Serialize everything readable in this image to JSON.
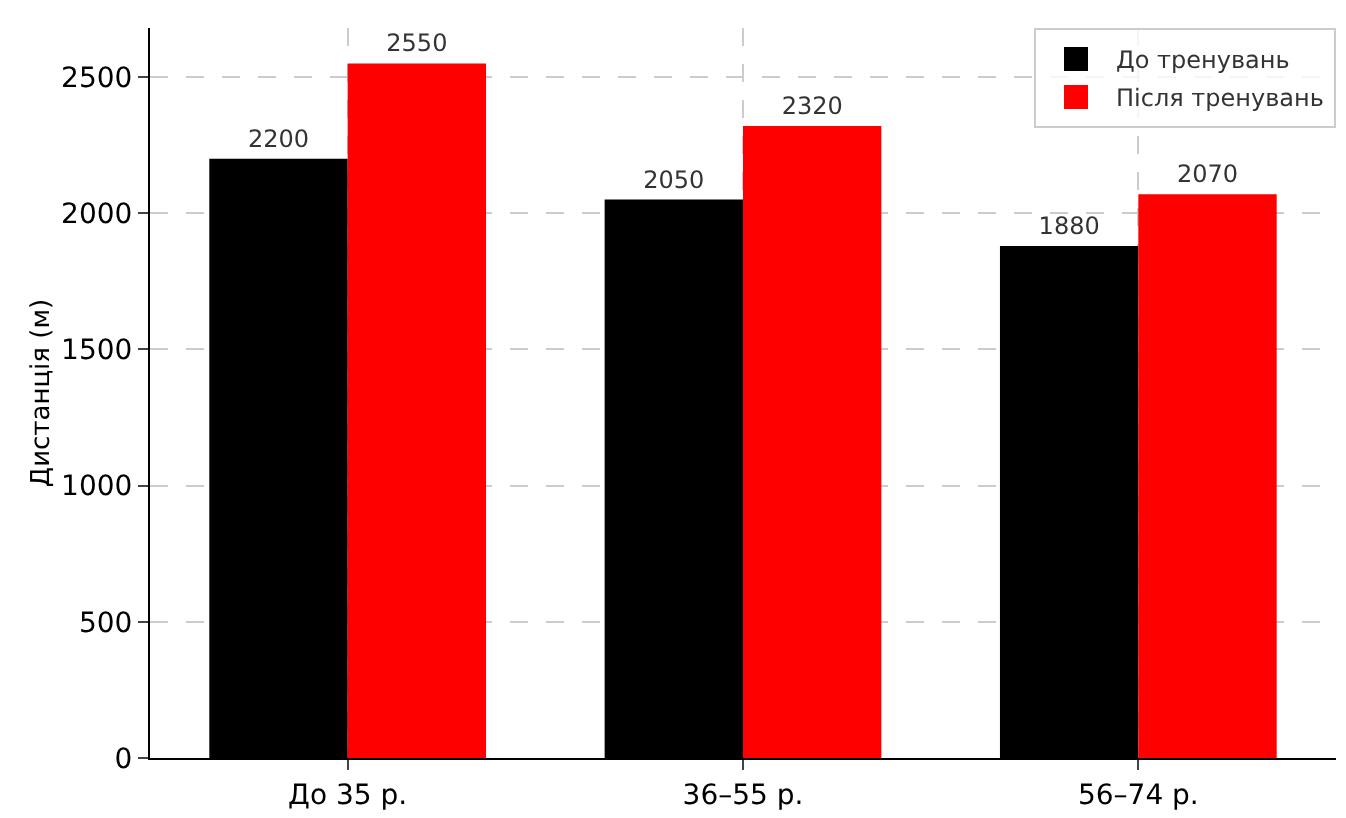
{
  "chart_data": {
    "type": "bar",
    "ylabel": "Дистанція (м)",
    "categories": [
      "До 35 р.",
      "36–55 р.",
      "56–74 р."
    ],
    "series": [
      {
        "name": "До тренувань",
        "color": "#000000",
        "values": [
          2200,
          2050,
          1880
        ]
      },
      {
        "name": "Після тренувань",
        "color": "#ff0000",
        "values": [
          2550,
          2320,
          2070
        ]
      }
    ],
    "ylim": [
      0,
      2680
    ],
    "yticks": [
      0,
      500,
      1000,
      1500,
      2000,
      2500
    ],
    "grid": true,
    "legend": "top right",
    "data_labels": true
  }
}
